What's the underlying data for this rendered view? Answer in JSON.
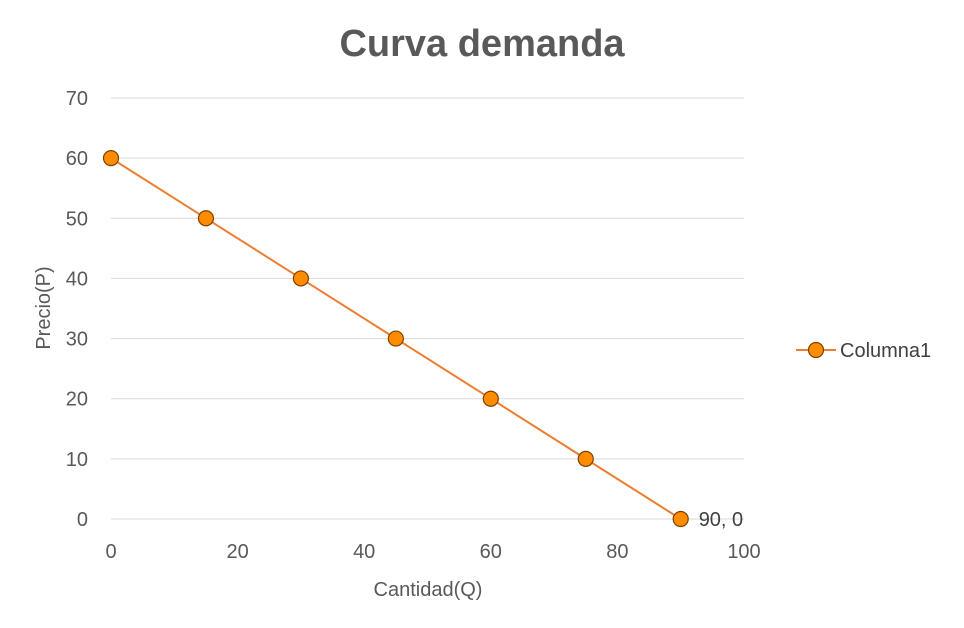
{
  "chart_data": {
    "type": "scatter",
    "title": "Curva demanda",
    "xlabel": "Cantidad(Q)",
    "ylabel": "Precio(P)",
    "xlim": [
      0,
      100
    ],
    "ylim": [
      0,
      70
    ],
    "x_ticks": [
      "0",
      "20",
      "40",
      "60",
      "80",
      "100"
    ],
    "y_ticks": [
      "0",
      "10",
      "20",
      "30",
      "40",
      "50",
      "60",
      "70"
    ],
    "grid": "horizontal",
    "legend_position": "right",
    "line_color": "#ed7d31",
    "marker_fill": "#ff8c00",
    "marker_edge": "#7f3f00",
    "series": [
      {
        "name": "Columna1",
        "x": [
          0,
          15,
          30,
          45,
          60,
          75,
          90
        ],
        "y": [
          60,
          50,
          40,
          30,
          20,
          10,
          0
        ]
      }
    ],
    "annotations": [
      {
        "text": "90, 0",
        "x": 90,
        "y": 0
      }
    ]
  }
}
